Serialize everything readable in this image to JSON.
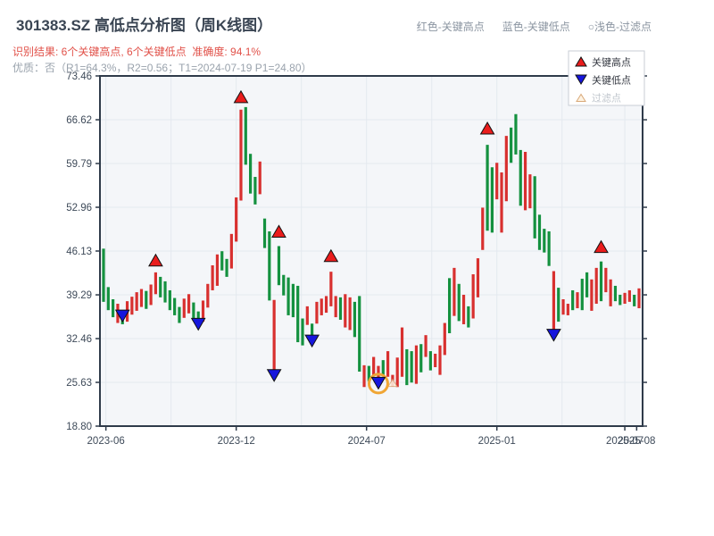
{
  "header": {
    "title": "301383.SZ 高低点分析图（周K线图）",
    "result": "识别结果: 6个关键高点, 6个关键低点  准确度: 94.1%",
    "quality": "优质：否（R1=64.3%，R2=0.56；T1=2024-07-19 P1=24.80）",
    "note_items": [
      "红色-关键高点",
      "蓝色-关键低点",
      "○浅色-过滤点"
    ]
  },
  "colors": {
    "up": "#d8302f",
    "down": "#14913f",
    "marker_high": "#ea1c1c",
    "marker_low": "#1616dd",
    "marker_edge": "#111111",
    "ring": "#f0a635",
    "filtered_fill": "#fdf3e3",
    "filtered_edge": "#d9a979",
    "grid": "#e4e9ef",
    "plot_bg": "#f4f6f9",
    "spine": "#2f3b4a",
    "axis_text": "#3e4a59",
    "legend_text": "#333740",
    "legend_muted": "#c0c6cd",
    "legend_border": "#c9ced6"
  },
  "chart_data": {
    "type": "bar",
    "subtype": "high-low candlestick (weekly K-line)",
    "y_max": 73.46,
    "y_min": 18.8,
    "y_ticks": [
      "73.46",
      "66.62",
      "59.79",
      "52.96",
      "46.13",
      "39.29",
      "32.46",
      "25.63",
      "18.80"
    ],
    "x_ticks": [
      {
        "i": 0.5,
        "label": "2023-06"
      },
      {
        "i": 28,
        "label": "2023-12"
      },
      {
        "i": 55.5,
        "label": "2024-07"
      },
      {
        "i": 83,
        "label": "2025-01"
      },
      {
        "i": 110,
        "label": "2025-07"
      },
      {
        "i": 112.5,
        "label": "2025-08"
      }
    ],
    "v_gridlines": [
      0.5,
      14.25,
      28,
      41.75,
      55.5,
      69.25,
      83,
      96.75,
      110
    ],
    "legend": [
      {
        "label": "关键高点",
        "glyph": "up",
        "muted": false
      },
      {
        "label": "关键低点",
        "glyph": "down",
        "muted": false
      },
      {
        "label": "过滤点",
        "glyph": "up-outline",
        "muted": true
      }
    ],
    "bars": [
      [
        46.5,
        38.2,
        "g"
      ],
      [
        40.5,
        36.9,
        "g"
      ],
      [
        38.6,
        35.8,
        "g"
      ],
      [
        37.9,
        34.9,
        "r"
      ],
      [
        36.8,
        34.7,
        "g"
      ],
      [
        38.3,
        35.1,
        "r"
      ],
      [
        39.0,
        36.2,
        "r"
      ],
      [
        39.7,
        36.8,
        "r"
      ],
      [
        40.2,
        37.4,
        "r"
      ],
      [
        39.9,
        37.1,
        "g"
      ],
      [
        40.9,
        37.7,
        "r"
      ],
      [
        42.8,
        39.4,
        "r"
      ],
      [
        42.1,
        38.9,
        "g"
      ],
      [
        41.4,
        38.1,
        "g"
      ],
      [
        40.0,
        36.9,
        "g"
      ],
      [
        38.8,
        36.1,
        "g"
      ],
      [
        37.4,
        34.9,
        "g"
      ],
      [
        38.7,
        35.7,
        "r"
      ],
      [
        39.4,
        36.4,
        "r"
      ],
      [
        38.1,
        35.3,
        "g"
      ],
      [
        36.7,
        34.5,
        "g"
      ],
      [
        38.4,
        35.1,
        "r"
      ],
      [
        41.0,
        37.3,
        "r"
      ],
      [
        43.9,
        40.0,
        "r"
      ],
      [
        45.6,
        40.7,
        "r"
      ],
      [
        46.1,
        43.1,
        "g"
      ],
      [
        44.9,
        42.1,
        "g"
      ],
      [
        48.8,
        43.4,
        "r"
      ],
      [
        54.5,
        47.6,
        "r"
      ],
      [
        68.2,
        54.0,
        "r"
      ],
      [
        68.6,
        59.6,
        "g"
      ],
      [
        61.3,
        55.1,
        "g"
      ],
      [
        57.7,
        53.4,
        "g"
      ],
      [
        60.1,
        55.0,
        "r"
      ],
      [
        51.2,
        46.6,
        "g"
      ],
      [
        49.2,
        38.4,
        "g"
      ],
      [
        38.5,
        26.3,
        "r"
      ],
      [
        46.9,
        40.8,
        "g"
      ],
      [
        42.4,
        39.2,
        "g"
      ],
      [
        42.0,
        36.1,
        "g"
      ],
      [
        41.0,
        35.8,
        "g"
      ],
      [
        40.7,
        31.9,
        "g"
      ],
      [
        35.6,
        31.4,
        "g"
      ],
      [
        37.5,
        34.6,
        "r"
      ],
      [
        34.8,
        31.6,
        "g"
      ],
      [
        38.2,
        34.8,
        "r"
      ],
      [
        38.7,
        36.1,
        "r"
      ],
      [
        39.1,
        36.5,
        "r"
      ],
      [
        42.9,
        37.5,
        "r"
      ],
      [
        39.1,
        35.8,
        "r"
      ],
      [
        38.9,
        35.4,
        "g"
      ],
      [
        39.4,
        34.2,
        "r"
      ],
      [
        38.9,
        33.8,
        "r"
      ],
      [
        38.2,
        32.7,
        "g"
      ],
      [
        39.1,
        27.3,
        "g"
      ],
      [
        28.3,
        24.9,
        "r"
      ],
      [
        28.2,
        25.8,
        "g"
      ],
      [
        29.6,
        26.8,
        "r"
      ],
      [
        28.2,
        24.8,
        "r"
      ],
      [
        29.1,
        26.8,
        "g"
      ],
      [
        30.5,
        26.5,
        "r"
      ],
      [
        26.8,
        25.0,
        "r"
      ],
      [
        29.5,
        24.9,
        "r"
      ],
      [
        34.2,
        26.5,
        "r"
      ],
      [
        30.8,
        25.2,
        "g"
      ],
      [
        30.5,
        25.6,
        "g"
      ],
      [
        31.4,
        25.4,
        "r"
      ],
      [
        31.6,
        27.2,
        "g"
      ],
      [
        33.0,
        29.6,
        "r"
      ],
      [
        30.5,
        27.5,
        "g"
      ],
      [
        30.1,
        28.0,
        "r"
      ],
      [
        31.4,
        26.8,
        "r"
      ],
      [
        34.9,
        29.9,
        "r"
      ],
      [
        41.9,
        33.3,
        "g"
      ],
      [
        43.5,
        36.0,
        "r"
      ],
      [
        41.0,
        35.2,
        "g"
      ],
      [
        39.3,
        34.7,
        "r"
      ],
      [
        37.5,
        34.2,
        "g"
      ],
      [
        42.5,
        35.6,
        "r"
      ],
      [
        45.0,
        38.9,
        "r"
      ],
      [
        52.9,
        46.3,
        "r"
      ],
      [
        62.7,
        49.3,
        "g"
      ],
      [
        59.2,
        49.0,
        "g"
      ],
      [
        59.9,
        54.2,
        "r"
      ],
      [
        58.4,
        49.0,
        "r"
      ],
      [
        64.1,
        53.9,
        "r"
      ],
      [
        65.4,
        59.9,
        "g"
      ],
      [
        67.5,
        61.2,
        "g"
      ],
      [
        61.9,
        53.2,
        "g"
      ],
      [
        61.6,
        52.5,
        "r"
      ],
      [
        58.1,
        52.8,
        "r"
      ],
      [
        57.8,
        48.1,
        "g"
      ],
      [
        51.8,
        46.3,
        "g"
      ],
      [
        49.6,
        45.9,
        "g"
      ],
      [
        49.2,
        43.8,
        "g"
      ],
      [
        43.0,
        32.6,
        "r"
      ],
      [
        40.4,
        35.1,
        "g"
      ],
      [
        38.6,
        36.2,
        "r"
      ],
      [
        37.9,
        36.1,
        "r"
      ],
      [
        40.0,
        36.9,
        "g"
      ],
      [
        39.7,
        37.2,
        "r"
      ],
      [
        41.8,
        36.9,
        "g"
      ],
      [
        42.8,
        38.9,
        "g"
      ],
      [
        41.7,
        36.8,
        "r"
      ],
      [
        43.5,
        37.9,
        "r"
      ],
      [
        44.5,
        38.3,
        "g"
      ],
      [
        43.5,
        39.7,
        "r"
      ],
      [
        41.7,
        37.5,
        "r"
      ],
      [
        40.7,
        38.3,
        "g"
      ],
      [
        39.3,
        37.7,
        "g"
      ],
      [
        39.6,
        37.9,
        "r"
      ],
      [
        40.0,
        38.2,
        "r"
      ],
      [
        39.3,
        37.5,
        "g"
      ],
      [
        40.3,
        37.2,
        "r"
      ]
    ],
    "markers_high": [
      {
        "i": 11,
        "v": 43.8
      },
      {
        "i": 29,
        "v": 69.3
      },
      {
        "i": 37,
        "v": 48.3
      },
      {
        "i": 48,
        "v": 44.5
      },
      {
        "i": 81,
        "v": 64.4
      },
      {
        "i": 105,
        "v": 45.9
      }
    ],
    "markers_low": [
      {
        "i": 4,
        "v": 35.1
      },
      {
        "i": 20,
        "v": 33.8
      },
      {
        "i": 36,
        "v": 25.8
      },
      {
        "i": 44,
        "v": 31.2
      },
      {
        "i": 58,
        "v": 24.6,
        "ring": true
      },
      {
        "i": 95,
        "v": 32.1
      }
    ],
    "markers_filtered": [
      {
        "i": 61,
        "v": 25.4
      }
    ],
    "key_point_annotation": {
      "T1": "2024-07-19",
      "P1": "24.80"
    }
  }
}
